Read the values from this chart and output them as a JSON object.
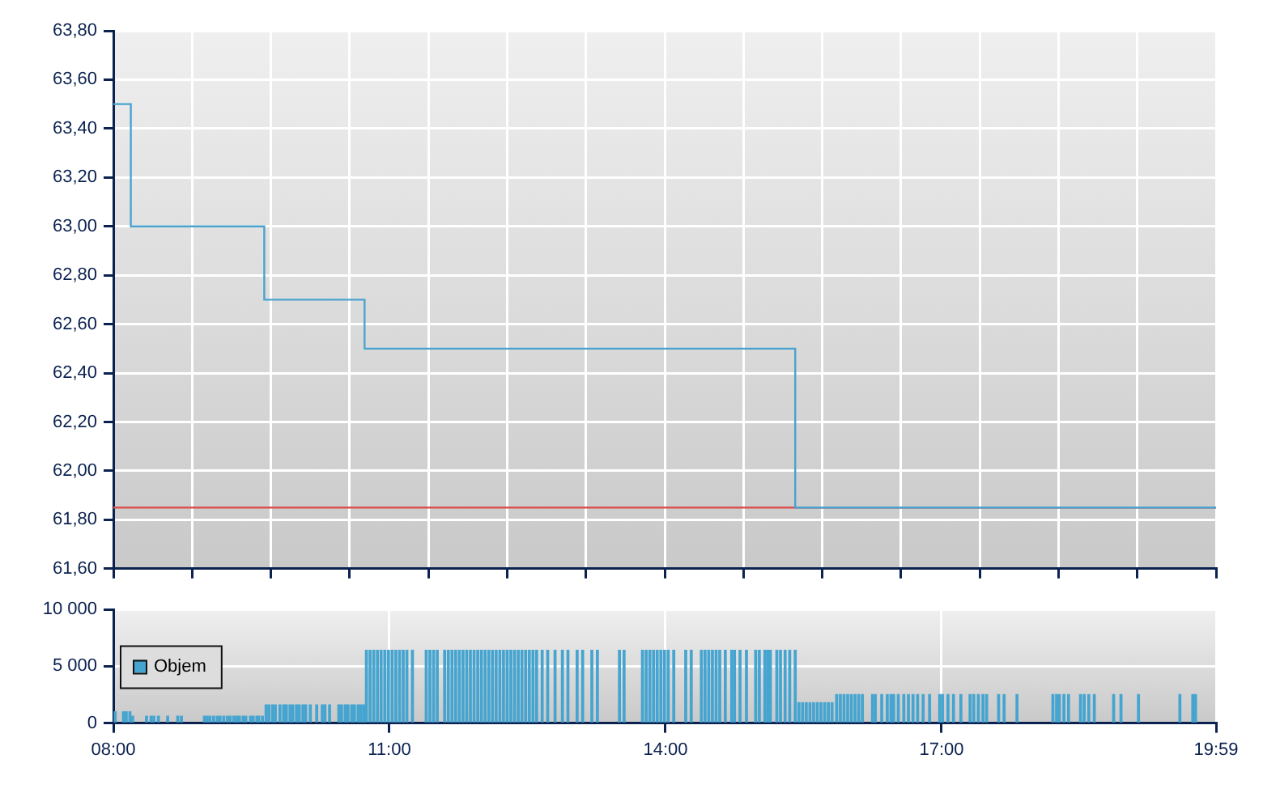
{
  "chart_data": [
    {
      "type": "step",
      "x": [
        8,
        8.19,
        9.64,
        10.73,
        15.41,
        19.983
      ],
      "series": [
        {
          "color": "#4aa3cf",
          "values": [
            63.5,
            63.0,
            62.7,
            62.5,
            61.85,
            61.85
          ]
        }
      ],
      "xlim": [
        8,
        19.983
      ],
      "xticks": [
        {
          "value": 8,
          "label": null
        },
        {
          "value": 8.856,
          "label": null
        },
        {
          "value": 9.712,
          "label": null
        },
        {
          "value": 10.568,
          "label": null
        },
        {
          "value": 11.424,
          "label": null
        },
        {
          "value": 12.28,
          "label": null
        },
        {
          "value": 13.136,
          "label": null
        },
        {
          "value": 13.992,
          "label": null
        },
        {
          "value": 14.848,
          "label": null
        },
        {
          "value": 15.704,
          "label": null
        },
        {
          "value": 16.56,
          "label": null
        },
        {
          "value": 17.416,
          "label": null
        },
        {
          "value": 18.271,
          "label": null
        },
        {
          "value": 19.127,
          "label": null
        },
        {
          "value": 19.983,
          "label": null
        }
      ],
      "ylim": [
        61.6,
        63.8
      ],
      "yticks": [
        {
          "value": 61.6,
          "label": "61,60"
        },
        {
          "value": 61.8,
          "label": "61,80"
        },
        {
          "value": 62.0,
          "label": "62,00"
        },
        {
          "value": 62.2,
          "label": "62,20"
        },
        {
          "value": 62.4,
          "label": "62,40"
        },
        {
          "value": 62.6,
          "label": "62,60"
        },
        {
          "value": 62.8,
          "label": "62,80"
        },
        {
          "value": 63.0,
          "label": "63,00"
        },
        {
          "value": 63.2,
          "label": "63,20"
        },
        {
          "value": 63.4,
          "label": "63,40"
        },
        {
          "value": 63.6,
          "label": "63,60"
        },
        {
          "value": 63.8,
          "label": "63,80"
        }
      ],
      "ref_lines": [
        {
          "axis": "y",
          "value": 61.85,
          "color": "#d9534f"
        }
      ],
      "tick_labels": "y",
      "grid": true
    },
    {
      "type": "bar",
      "x": [
        8.02,
        8.11,
        8.14,
        8.18,
        8.21,
        8.36,
        8.41,
        8.44,
        8.49,
        8.59,
        8.7,
        8.74,
        8.99,
        9.02,
        9.05,
        9.09,
        9.13,
        9.16,
        9.2,
        9.24,
        9.27,
        9.31,
        9.34,
        9.37,
        9.41,
        9.44,
        9.49,
        9.52,
        9.56,
        9.58,
        9.62,
        9.66,
        9.69,
        9.73,
        9.76,
        9.81,
        9.85,
        9.88,
        9.92,
        9.95,
        9.99,
        10.02,
        10.06,
        10.09,
        10.14,
        10.21,
        10.27,
        10.3,
        10.35,
        10.45,
        10.48,
        10.52,
        10.55,
        10.59,
        10.62,
        10.66,
        10.69,
        10.72,
        10.75,
        10.79,
        10.83,
        10.87,
        10.91,
        10.95,
        10.99,
        11.03,
        11.07,
        11.11,
        11.15,
        11.19,
        11.25,
        11.4,
        11.44,
        11.48,
        11.52,
        11.6,
        11.64,
        11.68,
        11.72,
        11.76,
        11.8,
        11.84,
        11.88,
        11.92,
        11.96,
        12.0,
        12.04,
        12.08,
        12.12,
        12.16,
        12.2,
        12.24,
        12.28,
        12.32,
        12.36,
        12.4,
        12.44,
        12.48,
        12.52,
        12.56,
        12.6,
        12.66,
        12.72,
        12.8,
        12.88,
        12.94,
        13.04,
        13.1,
        13.2,
        13.26,
        13.5,
        13.55,
        13.75,
        13.79,
        13.83,
        13.87,
        13.91,
        13.95,
        13.99,
        14.03,
        14.09,
        14.22,
        14.28,
        14.39,
        14.43,
        14.47,
        14.51,
        14.55,
        14.59,
        14.65,
        14.72,
        14.75,
        14.81,
        14.88,
        14.98,
        15.02,
        15.08,
        15.11,
        15.14,
        15.21,
        15.25,
        15.3,
        15.35,
        15.41,
        15.45,
        15.49,
        15.53,
        15.57,
        15.61,
        15.65,
        15.69,
        15.73,
        15.77,
        15.81,
        15.86,
        15.9,
        15.94,
        15.98,
        16.02,
        16.06,
        16.1,
        16.14,
        16.25,
        16.28,
        16.35,
        16.41,
        16.45,
        16.48,
        16.53,
        16.59,
        16.64,
        16.69,
        16.74,
        16.8,
        16.87,
        16.98,
        17.01,
        17.07,
        17.13,
        17.21,
        17.31,
        17.35,
        17.4,
        17.45,
        17.49,
        17.62,
        17.68,
        17.82,
        18.21,
        18.25,
        18.28,
        18.33,
        18.38,
        18.51,
        18.55,
        18.6,
        18.66,
        18.87,
        18.95,
        19.14,
        19.59,
        19.73,
        19.76
      ],
      "series": [
        {
          "name": "Objem",
          "color": "#45a5d0",
          "values": [
            1000,
            1000,
            1000,
            1000,
            600,
            600,
            600,
            600,
            600,
            600,
            600,
            600,
            600,
            600,
            600,
            600,
            600,
            600,
            600,
            600,
            600,
            600,
            600,
            600,
            600,
            600,
            600,
            600,
            600,
            600,
            600,
            1600,
            1600,
            1600,
            1600,
            1600,
            1600,
            1600,
            1600,
            1600,
            1600,
            1600,
            1600,
            1600,
            1600,
            1600,
            1600,
            1600,
            1600,
            1600,
            1600,
            1600,
            1600,
            1600,
            1600,
            1600,
            1600,
            1600,
            6400,
            6400,
            6400,
            6400,
            6400,
            6400,
            6400,
            6400,
            6400,
            6400,
            6400,
            6400,
            6400,
            6400,
            6400,
            6400,
            6400,
            6400,
            6400,
            6400,
            6400,
            6400,
            6400,
            6400,
            6400,
            6400,
            6400,
            6400,
            6400,
            6400,
            6400,
            6400,
            6400,
            6400,
            6400,
            6400,
            6400,
            6400,
            6400,
            6400,
            6400,
            6400,
            6400,
            6400,
            6400,
            6400,
            6400,
            6400,
            6400,
            6400,
            6400,
            6400,
            6400,
            6400,
            6400,
            6400,
            6400,
            6400,
            6400,
            6400,
            6400,
            6400,
            6400,
            6400,
            6400,
            6400,
            6400,
            6400,
            6400,
            6400,
            6400,
            6400,
            6400,
            6400,
            6400,
            6400,
            6400,
            6400,
            6400,
            6400,
            6400,
            6400,
            6400,
            6400,
            6400,
            6400,
            1800,
            1800,
            1800,
            1800,
            1800,
            1800,
            1800,
            1800,
            1800,
            1800,
            2500,
            2500,
            2500,
            2500,
            2500,
            2500,
            2500,
            2500,
            2500,
            2500,
            2500,
            2500,
            2500,
            2500,
            2500,
            2500,
            2500,
            2500,
            2500,
            2500,
            2500,
            2500,
            2500,
            2500,
            2500,
            2500,
            2500,
            2500,
            2500,
            2500,
            2500,
            2500,
            2500,
            2500,
            2500,
            2500,
            2500,
            2500,
            2500,
            2500,
            2500,
            2500,
            2500,
            2500,
            2500,
            2500,
            2500,
            2500,
            2500
          ]
        }
      ],
      "xlim": [
        8,
        19.983
      ],
      "xticks": [
        {
          "value": 8,
          "label": "08:00"
        },
        {
          "value": 11,
          "label": "11:00"
        },
        {
          "value": 14,
          "label": "14:00"
        },
        {
          "value": 17,
          "label": "17:00"
        },
        {
          "value": 19.983,
          "label": "19:59"
        }
      ],
      "ylim": [
        0,
        10000
      ],
      "yticks": [
        0,
        {
          "value": 5000,
          "label": "5 000"
        },
        {
          "value": 10000,
          "label": "10 000"
        }
      ],
      "legend": "left",
      "grid": true
    }
  ]
}
